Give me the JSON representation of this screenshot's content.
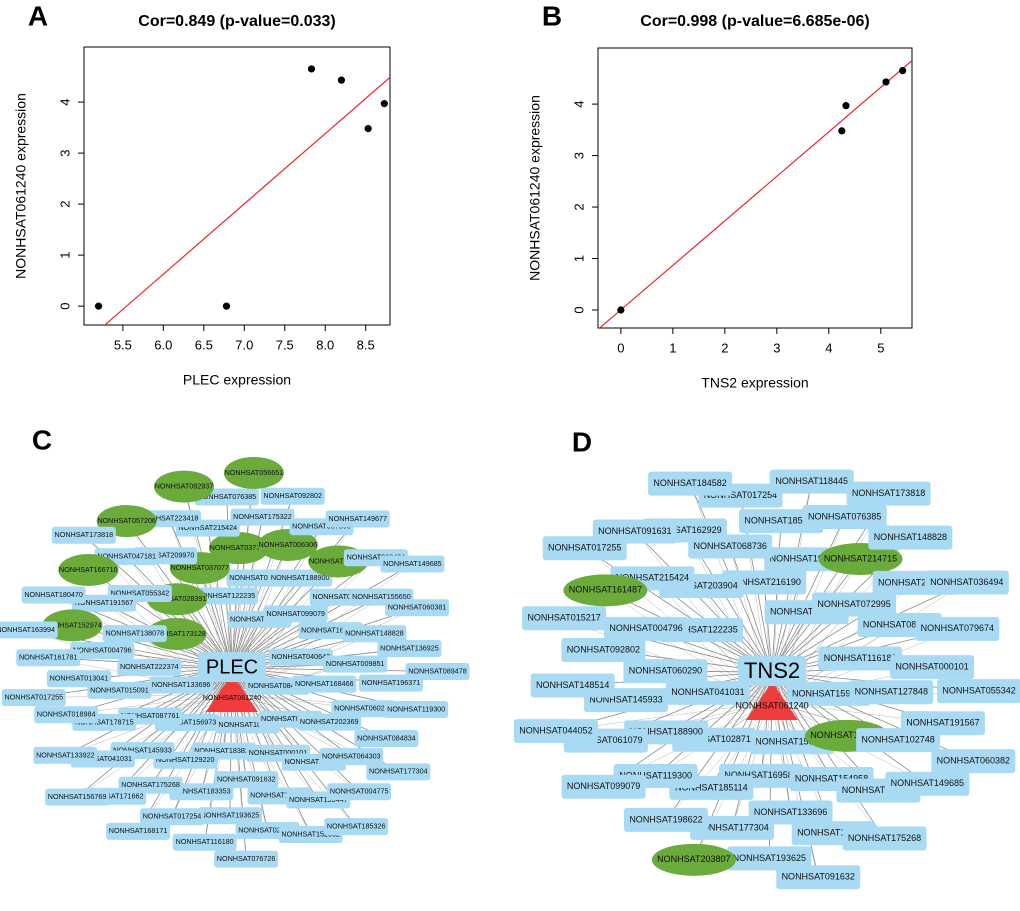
{
  "chart_data": [
    {
      "type": "scatter",
      "panel": "A",
      "title": "Cor=0.849 (p-value=0.033)",
      "x_label": "PLEC expression",
      "y_label": "NONHSAT061240 expression",
      "x": [
        5.2,
        6.78,
        7.83,
        8.2,
        8.53,
        8.73
      ],
      "y": [
        0,
        0,
        4.65,
        4.43,
        3.48,
        3.97
      ],
      "xlim": [
        5.02,
        8.8
      ],
      "ylim": [
        -0.37,
        5.08
      ],
      "xticks": [
        5.5,
        {
          "value": 6,
          "label": "6.0"
        },
        6.5,
        {
          "value": 7,
          "label": "7.0"
        },
        7.5,
        {
          "value": 8,
          "label": "8.0"
        },
        8.5
      ],
      "yticks": [
        0,
        1,
        2,
        3,
        4
      ],
      "color": "#000000",
      "fit_color": "#e8262a"
    },
    {
      "type": "scatter",
      "panel": "B",
      "title": "Cor=0.998 (p-value=6.685e-06)",
      "x_label": "TNS2 expression",
      "y_label": "NONHSAT061240 expression",
      "x": [
        0,
        4.25,
        4.33,
        5.1,
        5.42
      ],
      "y": [
        0,
        3.48,
        3.97,
        4.43,
        4.65
      ],
      "xlim": [
        -0.44,
        5.6
      ],
      "ylim": [
        -0.35,
        5.09
      ],
      "xticks": [
        0,
        1,
        2,
        3,
        4,
        5
      ],
      "yticks": [
        0,
        1,
        2,
        3,
        4
      ],
      "color": "#000000",
      "fit_color": "#e8262a"
    }
  ],
  "networks": [
    {
      "panel": "C",
      "center": "PLEC",
      "hub": "NONHSAT061240",
      "ellipse_nodes": [
        "NONHSAT173128",
        "NONHSAT028391",
        "NONHSAT037077",
        "NONHSAT037781",
        "NONHSAT006306",
        "NONHSAT208248",
        "NONHSAT152974",
        "NONHSAT166710",
        "NONHSAT057206",
        "NONHSAT082937",
        "NONHSAT056651"
      ],
      "nodes": [
        "NONHSAT084830",
        "NONHSAT133696",
        "NONHSAT099905",
        "NONHSAT185865",
        "NONHSAT040643",
        "NONHSAT156973",
        "NONHSAT122235",
        "NONHSAT015217",
        "NONHSAT222374",
        "NONHSAT099079",
        "NONHSAT183824",
        "NONHSAT168466",
        "NONHSAT087761",
        "NONHSAT075745",
        "NONHSAT000101",
        "NONHSAT138078",
        "NONHSAT162929",
        "NONHSAT129220",
        "NONHSAT202369",
        "NONHSAT015091",
        "NONHSAT188900",
        "NONHSAT091632",
        "NONHSAT055342",
        "NONHSAT009851",
        "NONHSAT145933",
        "NONHSAT217250",
        "NONHSAT004796",
        "NONHSAT060382",
        "NONHSAT183353",
        "NONHSAT209970",
        "NONHSAT060290",
        "NONHSAT178715",
        "NONHSAT120487",
        "NONHSAT191567",
        "NONHSAT148828",
        "NONHSAT175268",
        "NONHSAT215424",
        "NONHSAT064303",
        "NONHSAT013041",
        "NONHSAT193625",
        "NONHSAT047181",
        "NONHSAT196371",
        "NONHSAT041031",
        "NONHSAT175322",
        "NONHSAT159447",
        "NONHSAT155650",
        "NONHSAT017254",
        "NONHSAT223418",
        "NONHSAT084834",
        "NONHSAT018984",
        "NONHSAT087866",
        "NONHSAT022470",
        "NONHSAT136925",
        "NONHSAT171662",
        "NONHSAT076385",
        "NONHSAT004775",
        "NONHSAT161781",
        "NONHSAT036494",
        "NONHSAT116180",
        "NONHSAT119300",
        "NONHSAT133922",
        "NONHSAT092802",
        "NONHSAT152962",
        "NONHSAT180470",
        "NONHSAT060381",
        "NONHSAT168171",
        "NONHSAT177304",
        "NONHSAT017255",
        "NONHSAT149677",
        "NONHSAT076726",
        "NONHSAT173818",
        "NONHSAT089478",
        "NONHSAT156769",
        "NONHSAT185326",
        "NONHSAT163994",
        "NONHSAT149685"
      ]
    },
    {
      "panel": "D",
      "center": "TNS2",
      "hub": "NONHSAT061240",
      "ellipse_nodes": [
        "NONHSAT107327",
        "NONHSAT214715",
        "NONHSAT161487",
        "NONHSAT203807"
      ],
      "nodes": [
        "NONHSAT159447",
        "NONHSAT041031",
        "NONHSAT152962",
        "NONHSAT156769",
        "NONHSAT122235",
        "NONHSAT116180",
        "NONHSAT102871",
        "NONHSAT216190",
        "NONHSAT060290",
        "NONHSAT072995",
        "NONHSAT169584",
        "NONHSAT203904",
        "NONHSAT127848",
        "NONHSAT188900",
        "NONHSAT190893",
        "NONHSAT154958",
        "NONHSAT004796",
        "NONHSAT087866",
        "NONHSAT185114",
        "NONHSAT068736",
        "NONHSAT102748",
        "NONHSAT145933",
        "NONHSAT133696",
        "NONHSAT215424",
        "NONHSAT000101",
        "NONHSAT119300",
        "NONHSAT185865",
        "NONHSAT163994",
        "NONHSAT092802",
        "NONHSAT223418",
        "NONHSAT177304",
        "NONHSAT162929",
        "NONHSAT191567",
        "NONHSAT061079",
        "NONHSAT076385",
        "NONHSAT162895",
        "NONHSAT079674",
        "NONHSAT198622",
        "NONHSAT017254",
        "NONHSAT149685",
        "NONHSAT148514",
        "NONHSAT148828",
        "NONHSAT193625",
        "NONHSAT091631",
        "NONHSAT055342",
        "NONHSAT099079",
        "NONHSAT118445",
        "NONHSAT175268",
        "NONHSAT015217",
        "NONHSAT036494",
        "NONHSAT184582",
        "NONHSAT060382",
        "NONHSAT044052",
        "NONHSAT173818",
        "NONHSAT091632",
        "NONHSAT017255"
      ]
    }
  ]
}
